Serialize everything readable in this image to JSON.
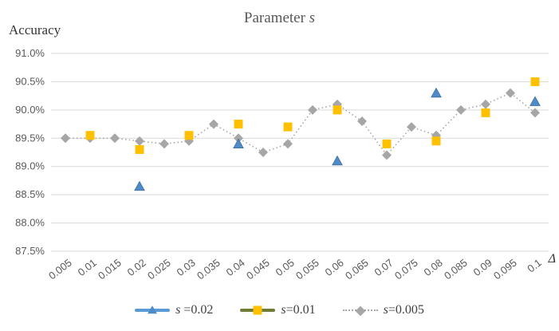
{
  "title": {
    "text": "Parameter",
    "param": "s"
  },
  "y_axis": {
    "label": "Accuracy",
    "ticks": [
      "91.0%",
      "90.5%",
      "90.0%",
      "89.5%",
      "89.0%",
      "88.5%",
      "88.0%",
      "87.5%"
    ]
  },
  "x_axis": {
    "label": "Δ",
    "categories": [
      "0.005",
      "0.01",
      "0.015",
      "0.02",
      "0.025",
      "0.03",
      "0.035",
      "0.04",
      "0.045",
      "0.05",
      "0.055",
      "0.06",
      "0.065",
      "0.07",
      "0.075",
      "0.08",
      "0.085",
      "0.09",
      "0.095",
      "0.1"
    ]
  },
  "legend": {
    "items": [
      {
        "symbol": "s",
        "eq": " =0.02",
        "line_color": "#5B9BD5",
        "line_style": "solid",
        "marker": "triangle",
        "marker_color": "#4E8BC8"
      },
      {
        "symbol": "s",
        "eq": "=0.01",
        "line_color": "#6F7C33",
        "line_style": "solid",
        "marker": "square",
        "marker_color": "#FFC000"
      },
      {
        "symbol": "s",
        "eq": "=0.005",
        "line_color": "#A6A6A6",
        "line_style": "dotted",
        "marker": "diamond",
        "marker_color": "#A6A6A6"
      }
    ]
  },
  "colors": {
    "gridline": "#D9D9D9",
    "tick_text": "#595959",
    "title_text": "#595959",
    "series_blue": "#4E8BC8",
    "series_blue_edge": "#41719C",
    "series_yellow": "#FFC000",
    "series_gray": "#A6A6A6",
    "legend_olive": "#6F7C33"
  },
  "chart_data": {
    "type": "line",
    "title": "Parameter s",
    "xlabel": "Δ",
    "ylabel": "Accuracy",
    "categories": [
      "0.005",
      "0.01",
      "0.015",
      "0.02",
      "0.025",
      "0.03",
      "0.035",
      "0.04",
      "0.045",
      "0.05",
      "0.055",
      "0.06",
      "0.065",
      "0.07",
      "0.075",
      "0.08",
      "0.085",
      "0.09",
      "0.095",
      "0.1"
    ],
    "ylim": [
      87.5,
      91.0
    ],
    "ytick_step": 0.5,
    "grid": true,
    "legend_position": "bottom",
    "series": [
      {
        "name": "s =0.02",
        "marker": "triangle",
        "color": "#4E8BC8",
        "line": "none",
        "values": [
          null,
          null,
          null,
          88.65,
          null,
          null,
          null,
          89.4,
          null,
          null,
          null,
          89.1,
          null,
          null,
          null,
          90.3,
          null,
          null,
          null,
          90.15
        ]
      },
      {
        "name": "s=0.01",
        "marker": "square",
        "color": "#FFC000",
        "line": "none",
        "values": [
          null,
          89.55,
          null,
          89.3,
          null,
          89.55,
          null,
          89.75,
          null,
          89.7,
          null,
          90.0,
          null,
          89.4,
          null,
          89.45,
          null,
          89.95,
          null,
          90.5
        ]
      },
      {
        "name": "s=0.005",
        "marker": "diamond",
        "color": "#A6A6A6",
        "line": "dotted",
        "values": [
          89.5,
          89.5,
          89.5,
          89.45,
          89.4,
          89.45,
          89.75,
          89.5,
          89.25,
          89.4,
          90.0,
          90.1,
          89.8,
          89.2,
          89.7,
          89.55,
          90.0,
          90.1,
          90.3,
          89.95
        ]
      }
    ]
  }
}
